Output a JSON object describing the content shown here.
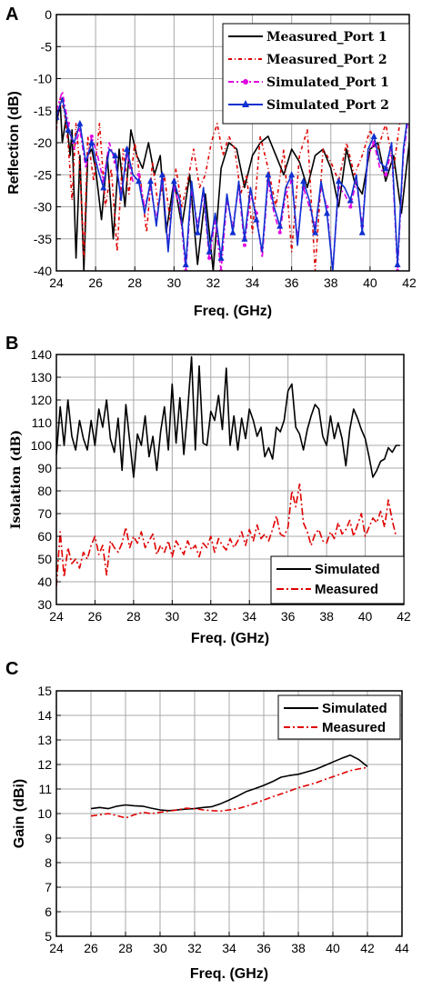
{
  "chart_data": [
    {
      "panel": "A",
      "type": "line",
      "xlabel": "Freq. (GHz)",
      "ylabel": "Reflection (dB)",
      "xlim": [
        24,
        42
      ],
      "ylim": [
        -40,
        0
      ],
      "xticks": [
        24,
        26,
        28,
        30,
        32,
        34,
        36,
        38,
        40,
        42
      ],
      "yticks": [
        0,
        -5,
        -10,
        -15,
        -20,
        -25,
        -30,
        -35,
        -40
      ],
      "grid": true,
      "legend": "top-right",
      "series": [
        {
          "name": "Measured_Port 1",
          "color": "#000000",
          "dash": "solid",
          "marker": "none",
          "x": [
            24,
            24.2,
            24.3,
            24.5,
            24.7,
            24.8,
            25,
            25.2,
            25.4,
            25.6,
            25.8,
            26,
            26.3,
            26.6,
            26.9,
            27.2,
            27.5,
            27.8,
            28.1,
            28.4,
            28.7,
            29,
            29.3,
            29.6,
            30,
            30.4,
            30.8,
            31.2,
            31.6,
            32,
            32.4,
            32.8,
            33.2,
            33.6,
            34,
            34.4,
            34.8,
            35.2,
            35.6,
            36,
            36.4,
            36.8,
            37.2,
            37.6,
            38,
            38.4,
            38.8,
            39.2,
            39.6,
            40,
            40.4,
            40.8,
            41.2,
            41.6,
            42
          ],
          "y": [
            -17,
            -14,
            -20,
            -16,
            -22,
            -18,
            -38,
            -22,
            -40,
            -22,
            -21,
            -24,
            -32,
            -22,
            -35,
            -21,
            -30,
            -18,
            -22,
            -24,
            -20,
            -25,
            -22,
            -34,
            -26,
            -33,
            -25,
            -39,
            -28,
            -40,
            -24,
            -20,
            -21,
            -27,
            -22,
            -20,
            -19,
            -22,
            -25,
            -21,
            -23,
            -27,
            -22,
            -21,
            -24,
            -30,
            -21,
            -26,
            -28,
            -21,
            -20,
            -26,
            -22,
            -31,
            -20
          ]
        },
        {
          "name": "Measured_Port 2",
          "color": "#e00000",
          "dash": "4,3,1,3",
          "marker": "none",
          "x": [
            24,
            24.2,
            24.4,
            24.6,
            24.8,
            25,
            25.2,
            25.4,
            25.6,
            25.9,
            26.2,
            26.5,
            26.8,
            27.1,
            27.4,
            27.7,
            28,
            28.3,
            28.6,
            28.9,
            29.2,
            29.5,
            29.8,
            30.1,
            30.4,
            30.7,
            31,
            31.3,
            31.6,
            31.9,
            32.2,
            32.5,
            32.8,
            33.1,
            33.4,
            33.7,
            34,
            34.4,
            34.8,
            35.2,
            35.6,
            36,
            36.4,
            36.8,
            37.2,
            37.6,
            38,
            38.4,
            38.8,
            39.2,
            39.6,
            40,
            40.4,
            40.8,
            41.2,
            41.6,
            42
          ],
          "y": [
            -18,
            -13,
            -15,
            -20,
            -29,
            -17,
            -24,
            -38,
            -19,
            -26,
            -17,
            -30,
            -24,
            -37,
            -21,
            -28,
            -20,
            -26,
            -34,
            -23,
            -30,
            -25,
            -32,
            -24,
            -30,
            -26,
            -21,
            -27,
            -25,
            -20,
            -17,
            -22,
            -19,
            -21,
            -28,
            -25,
            -34,
            -19,
            -24,
            -30,
            -21,
            -37,
            -22,
            -18,
            -40,
            -21,
            -23,
            -26,
            -20,
            -25,
            -22,
            -18,
            -21,
            -17,
            -24,
            -15,
            -14
          ]
        },
        {
          "name": "Simulated_Port 1",
          "color": "#e000e0",
          "dash": "6,3,2,3",
          "marker": "dot",
          "x": [
            24,
            24.3,
            24.6,
            24.9,
            25.2,
            25.5,
            25.8,
            26.1,
            26.4,
            26.7,
            27,
            27.3,
            27.6,
            27.9,
            28.2,
            28.5,
            28.8,
            29.1,
            29.4,
            29.7,
            30,
            30.3,
            30.6,
            30.9,
            31.2,
            31.5,
            31.8,
            32.1,
            32.4,
            32.7,
            33,
            33.3,
            33.6,
            33.9,
            34.2,
            34.5,
            34.8,
            35.1,
            35.4,
            35.7,
            36,
            36.3,
            36.6,
            36.9,
            37.2,
            37.5,
            37.8,
            38.1,
            38.4,
            38.7,
            39,
            39.3,
            39.6,
            39.9,
            40.2,
            40.5,
            40.8,
            41.1,
            41.4,
            41.7,
            42
          ],
          "y": [
            -15,
            -12,
            -17,
            -21,
            -18,
            -24,
            -19,
            -22,
            -26,
            -20,
            -23,
            -28,
            -22,
            -26,
            -25,
            -30,
            -27,
            -32,
            -26,
            -36,
            -27,
            -30,
            -40,
            -27,
            -33,
            -28,
            -38,
            -32,
            -40,
            -29,
            -33,
            -27,
            -36,
            -28,
            -31,
            -38,
            -26,
            -31,
            -34,
            -28,
            -26,
            -35,
            -27,
            -30,
            -33,
            -27,
            -30,
            -40,
            -27,
            -28,
            -30,
            -26,
            -33,
            -22,
            -20,
            -24,
            -25,
            -21,
            -40,
            -22,
            -15
          ]
        },
        {
          "name": "Simulated_Port 2",
          "color": "#1030d0",
          "dash": "solid",
          "marker": "triangle",
          "x": [
            24,
            24.3,
            24.6,
            24.9,
            25.2,
            25.5,
            25.8,
            26.1,
            26.4,
            26.7,
            27,
            27.3,
            27.6,
            27.9,
            28.2,
            28.5,
            28.8,
            29.1,
            29.4,
            29.7,
            30,
            30.3,
            30.6,
            30.9,
            31.2,
            31.5,
            31.8,
            32.1,
            32.4,
            32.7,
            33,
            33.3,
            33.6,
            33.9,
            34.2,
            34.5,
            34.8,
            35.1,
            35.4,
            35.7,
            36,
            36.3,
            36.6,
            36.9,
            37.2,
            37.5,
            37.8,
            38.1,
            38.4,
            38.7,
            39,
            39.3,
            39.6,
            39.9,
            40.2,
            40.5,
            40.8,
            41.1,
            41.4,
            41.7,
            42
          ],
          "y": [
            -16,
            -13,
            -18,
            -20,
            -17,
            -23,
            -20,
            -24,
            -27,
            -21,
            -22,
            -29,
            -21,
            -25,
            -26,
            -31,
            -26,
            -33,
            -25,
            -37,
            -26,
            -29,
            -39,
            -26,
            -34,
            -27,
            -37,
            -31,
            -38,
            -28,
            -34,
            -26,
            -35,
            -27,
            -32,
            -37,
            -25,
            -30,
            -33,
            -27,
            -25,
            -36,
            -26,
            -29,
            -34,
            -26,
            -31,
            -40,
            -26,
            -27,
            -29,
            -25,
            -34,
            -21,
            -19,
            -23,
            -24,
            -20,
            -39,
            -21,
            -14
          ]
        }
      ]
    },
    {
      "panel": "B",
      "type": "line",
      "xlabel": "Freq. (GHz)",
      "ylabel": "Isolation (dB)",
      "xlim": [
        24,
        42
      ],
      "ylim": [
        30,
        140
      ],
      "xticks": [
        24,
        26,
        28,
        30,
        32,
        34,
        36,
        38,
        40,
        42
      ],
      "yticks": [
        30,
        40,
        50,
        60,
        70,
        80,
        90,
        100,
        110,
        120,
        130,
        140
      ],
      "grid": true,
      "legend": "bottom-right",
      "series": [
        {
          "name": "Simulated",
          "color": "#000000",
          "dash": "solid",
          "x": [
            24,
            24.2,
            24.4,
            24.6,
            24.8,
            25,
            25.2,
            25.4,
            25.6,
            25.8,
            26,
            26.2,
            26.4,
            26.6,
            26.8,
            27,
            27.2,
            27.4,
            27.6,
            27.8,
            28,
            28.2,
            28.4,
            28.6,
            28.8,
            29,
            29.2,
            29.4,
            29.6,
            29.8,
            30,
            30.2,
            30.4,
            30.6,
            30.8,
            31,
            31.2,
            31.4,
            31.6,
            31.8,
            32,
            32.2,
            32.4,
            32.6,
            32.8,
            33,
            33.2,
            33.4,
            33.6,
            33.8,
            34,
            34.2,
            34.4,
            34.6,
            34.8,
            35,
            35.2,
            35.4,
            35.6,
            35.8,
            36,
            36.2,
            36.4,
            36.6,
            36.8,
            37,
            37.2,
            37.4,
            37.6,
            37.8,
            38,
            38.2,
            38.4,
            38.6,
            38.8,
            39,
            39.2,
            39.4,
            39.6,
            39.8,
            40,
            40.2,
            40.4,
            40.6,
            40.8,
            41,
            41.2,
            41.4,
            41.6,
            41.8
          ],
          "y": [
            96,
            117,
            100,
            120,
            104,
            98,
            111,
            103,
            98,
            111,
            100,
            116,
            108,
            120,
            103,
            97,
            112,
            89,
            118,
            102,
            86,
            105,
            100,
            113,
            95,
            104,
            89,
            106,
            117,
            98,
            127,
            101,
            121,
            96,
            115,
            139,
            98,
            135,
            101,
            100,
            115,
            111,
            122,
            107,
            134,
            100,
            113,
            98,
            112,
            103,
            116,
            111,
            104,
            108,
            95,
            99,
            94,
            108,
            106,
            111,
            124,
            127,
            108,
            105,
            98,
            107,
            113,
            118,
            116,
            104,
            100,
            113,
            103,
            110,
            103,
            91,
            107,
            116,
            112,
            107,
            103,
            95,
            86,
            89,
            93,
            94,
            99,
            97,
            100,
            100
          ]
        },
        {
          "name": "Measured",
          "color": "#e00000",
          "dash": "8,3,2,3",
          "x": [
            24,
            24.2,
            24.4,
            24.6,
            24.8,
            25,
            25.2,
            25.4,
            25.6,
            25.8,
            26,
            26.2,
            26.4,
            26.6,
            26.8,
            27,
            27.2,
            27.4,
            27.6,
            27.8,
            28,
            28.2,
            28.4,
            28.6,
            28.8,
            29,
            29.2,
            29.4,
            29.6,
            29.8,
            30,
            30.2,
            30.4,
            30.6,
            30.8,
            31,
            31.2,
            31.4,
            31.6,
            31.8,
            32,
            32.2,
            32.4,
            32.6,
            32.8,
            33,
            33.2,
            33.4,
            33.6,
            33.8,
            34,
            34.2,
            34.4,
            34.6,
            34.8,
            35,
            35.2,
            35.4,
            35.6,
            35.8,
            36,
            36.2,
            36.4,
            36.6,
            36.8,
            37,
            37.2,
            37.4,
            37.6,
            37.8,
            38,
            38.2,
            38.4,
            38.6,
            38.8,
            39,
            39.2,
            39.4,
            39.6,
            39.8,
            40,
            40.2,
            40.4,
            40.6,
            40.8,
            41,
            41.2,
            41.4,
            41.6
          ],
          "y": [
            38,
            62,
            42,
            55,
            48,
            50,
            46,
            53,
            50,
            56,
            60,
            52,
            56,
            43,
            58,
            55,
            53,
            57,
            64,
            55,
            60,
            57,
            62,
            55,
            58,
            61,
            52,
            56,
            53,
            58,
            51,
            58,
            55,
            52,
            58,
            54,
            56,
            51,
            57,
            55,
            60,
            53,
            59,
            56,
            54,
            59,
            55,
            58,
            62,
            56,
            63,
            58,
            65,
            59,
            61,
            58,
            63,
            69,
            61,
            60,
            64,
            80,
            73,
            83,
            66,
            62,
            56,
            61,
            63,
            58,
            57,
            62,
            59,
            66,
            61,
            63,
            67,
            60,
            65,
            70,
            60,
            64,
            68,
            66,
            71,
            64,
            76,
            67,
            60
          ]
        }
      ]
    },
    {
      "panel": "C",
      "type": "line",
      "xlabel": "Freq. (GHz)",
      "ylabel": "Gain (dBi)",
      "xlim": [
        24,
        44
      ],
      "ylim": [
        5,
        15
      ],
      "xticks": [
        24,
        26,
        28,
        30,
        32,
        34,
        36,
        38,
        40,
        42,
        44
      ],
      "yticks": [
        5,
        6,
        7,
        8,
        9,
        10,
        11,
        12,
        13,
        14,
        15
      ],
      "grid": true,
      "legend": "top-right",
      "series": [
        {
          "name": "Simulated",
          "color": "#000000",
          "dash": "solid",
          "x": [
            26,
            26.5,
            27,
            27.5,
            28,
            28.5,
            29,
            29.5,
            30,
            30.5,
            31,
            31.5,
            32,
            32.5,
            33,
            33.5,
            34,
            34.5,
            35,
            35.5,
            36,
            36.5,
            37,
            37.5,
            38,
            38.5,
            39,
            39.5,
            40,
            40.5,
            41,
            41.5,
            42
          ],
          "y": [
            10.2,
            10.25,
            10.2,
            10.3,
            10.35,
            10.32,
            10.3,
            10.22,
            10.15,
            10.12,
            10.15,
            10.18,
            10.2,
            10.25,
            10.28,
            10.4,
            10.55,
            10.72,
            10.9,
            11.02,
            11.15,
            11.3,
            11.48,
            11.55,
            11.6,
            11.7,
            11.8,
            11.95,
            12.1,
            12.25,
            12.38,
            12.2,
            11.92
          ]
        },
        {
          "name": "Measured",
          "color": "#e00000",
          "dash": "7,3,2,3",
          "x": [
            26,
            26.5,
            27,
            27.5,
            28,
            28.5,
            29,
            29.5,
            30,
            30.5,
            31,
            31.5,
            32,
            32.5,
            33,
            33.5,
            34,
            34.5,
            35,
            35.5,
            36,
            36.5,
            37,
            37.5,
            38,
            38.5,
            39,
            39.5,
            40,
            40.5,
            41,
            41.5,
            42
          ],
          "y": [
            9.9,
            9.95,
            10.0,
            9.92,
            9.82,
            9.95,
            10.05,
            10.0,
            10.05,
            10.1,
            10.15,
            10.22,
            10.2,
            10.15,
            10.12,
            10.1,
            10.15,
            10.2,
            10.3,
            10.42,
            10.55,
            10.68,
            10.8,
            10.92,
            11.05,
            11.15,
            11.25,
            11.38,
            11.5,
            11.62,
            11.75,
            11.82,
            11.88
          ]
        }
      ]
    }
  ]
}
